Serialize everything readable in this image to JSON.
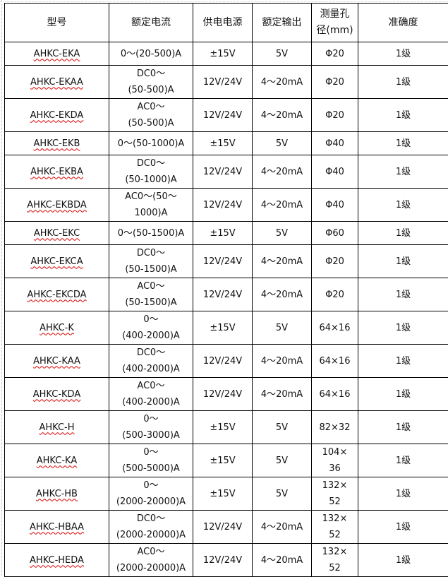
{
  "headers": [
    "型号",
    "额定电流",
    "供电电源",
    "额定输出",
    "测量孔\n径(mm)",
    "准确度"
  ],
  "rows": [
    {
      "model": "AHKC-EKA",
      "current": "0～(20-500)A",
      "supply": "±15V",
      "output": "5V",
      "aperture": "Φ20",
      "accuracy": "1级"
    },
    {
      "model": "AHKC-EKAA",
      "current": "DC0～\n(50-500)A",
      "supply": "12V/24V",
      "output": "4～20mA",
      "aperture": "Φ20",
      "accuracy": "1级"
    },
    {
      "model": "AHKC-EKDA",
      "current": "AC0～\n(50-500)A",
      "supply": "12V/24V",
      "output": "4～20mA",
      "aperture": "Φ20",
      "accuracy": "1级"
    },
    {
      "model": "AHKC-EKB",
      "current": "0～(50-1000)A",
      "supply": "±15V",
      "output": "5V",
      "aperture": "Φ40",
      "accuracy": "1级"
    },
    {
      "model": "AHKC-EKBA",
      "current": "DC0～\n(50-1000)A",
      "supply": "12V/24V",
      "output": "4～20mA",
      "aperture": "Φ40",
      "accuracy": "1级"
    },
    {
      "model": "AHKC-EKBDA",
      "current": "AC0～(50～\n1000)A",
      "supply": "12V/24V",
      "output": "4～20mA",
      "aperture": "Φ40",
      "accuracy": "1级"
    },
    {
      "model": "AHKC-EKC",
      "current": "0～(50-1500)A",
      "supply": "±15V",
      "output": "5V",
      "aperture": "Φ60",
      "accuracy": "1级"
    },
    {
      "model": "AHKC-EKCA",
      "current": "DC0～\n(50-1500)A",
      "supply": "12V/24V",
      "output": "4～20mA",
      "aperture": "Φ20",
      "accuracy": "1级"
    },
    {
      "model": "AHKC-EKCDA",
      "current": "AC0～\n(50-1500)A",
      "supply": "12V/24V",
      "output": "4～20mA",
      "aperture": "Φ20",
      "accuracy": "1级"
    },
    {
      "model": "AHKC-K",
      "current": "0～\n(400-2000)A",
      "supply": "±15V",
      "output": "5V",
      "aperture": "64×16",
      "accuracy": "1级"
    },
    {
      "model": "AHKC-KAA",
      "current": "DC0～\n(400-2000)A",
      "supply": "12V/24V",
      "output": "4～20mA",
      "aperture": "64×16",
      "accuracy": "1级"
    },
    {
      "model": "AHKC-KDA",
      "current": "AC0～\n(400-2000)A",
      "supply": "12V/24V",
      "output": "4～20mA",
      "aperture": "64×16",
      "accuracy": "1级"
    },
    {
      "model": "AHKC-H",
      "current": "0～\n(500-3000)A",
      "supply": "±15V",
      "output": "5V",
      "aperture": "82×32",
      "accuracy": "1级"
    },
    {
      "model": "AHKC-KA",
      "current": "0～\n(500-5000)A",
      "supply": "±15V",
      "output": "5V",
      "aperture": "104×\n36",
      "accuracy": "1级"
    },
    {
      "model": "AHKC-HB",
      "current": "0～\n(2000-20000)A",
      "supply": "±15V",
      "output": "5V",
      "aperture": "132×\n52",
      "accuracy": "1级"
    },
    {
      "model": "AHKC-HBAA",
      "current": "DC0～\n(2000-20000)A",
      "supply": "12V/24V",
      "output": "4～20mA",
      "aperture": "132×\n52",
      "accuracy": "1级"
    },
    {
      "model": "AHKC-HEDA",
      "current": "AC0～\n(2000-20000)A",
      "supply": "12V/24V",
      "output": "4～20mA",
      "aperture": "132×\n52",
      "accuracy": "1级"
    }
  ]
}
